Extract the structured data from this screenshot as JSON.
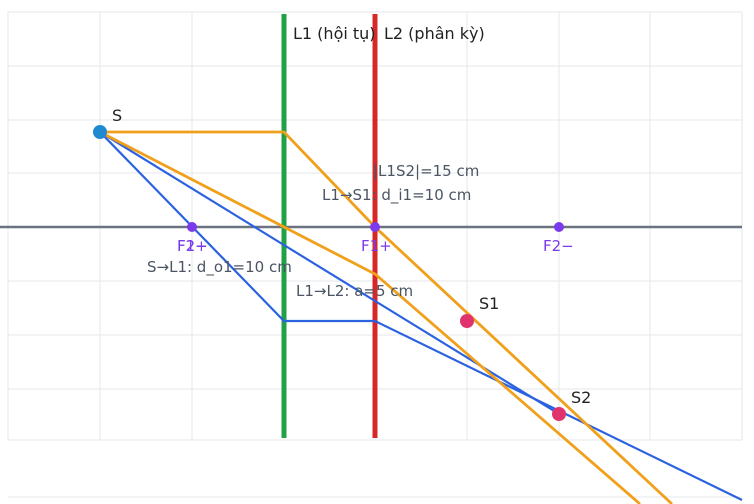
{
  "diagram": {
    "lens1_label": "L1 (hội tụ)",
    "lens2_label": "L2 (phân kỳ)",
    "labels": {
      "object": "S",
      "image1": "S1",
      "image2": "S2",
      "f2_plus": "F2+",
      "f1_minus": "F1−",
      "f1_plus": "F1+",
      "f2_minus": "F2−"
    },
    "measurements": {
      "l1s2": "|L1S2|=15 cm",
      "l1_s1": "L1→S1: d_i1=10 cm",
      "s_l1": "S→L1: d_o1=10 cm",
      "l1_l2": "L1→L2: a=5 cm"
    },
    "colors": {
      "lens1": "#22a046",
      "lens2": "#d62828",
      "ray_orange": "#f0a01a",
      "ray_blue": "#2b62e0",
      "axis": "#6b7280",
      "object_point": "#1f8ad0",
      "image_point": "#e0336e",
      "focal_point": "#7c3aed"
    }
  }
}
